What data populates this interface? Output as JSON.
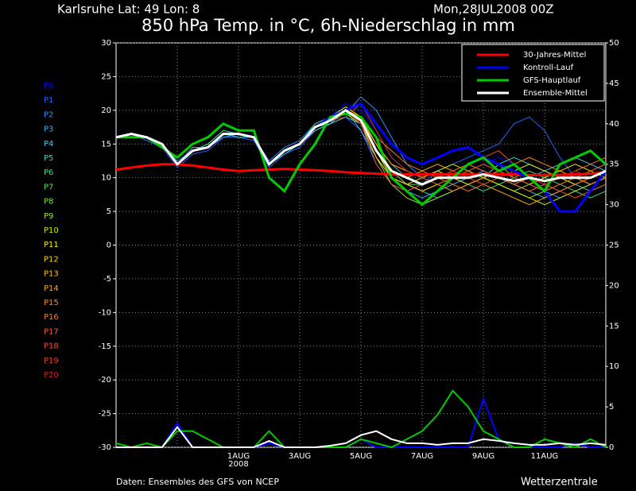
{
  "chart_data": {
    "type": "line",
    "location": "Karlsruhe   Lat: 49 Lon: 8",
    "run": "Mon,28JUL2008 00Z",
    "title": "850 hPa Temp. in °C, 6h-Niederschlag in mm",
    "source": "Daten: Ensembles des GFS von NCEP",
    "brand": "Wetterzentrale",
    "categories": [
      null,
      null,
      null,
      null,
      null,
      null,
      null,
      null,
      "1AUG",
      null,
      null,
      null,
      "3AUG",
      null,
      null,
      null,
      "5AUG",
      null,
      null,
      null,
      "7AUG",
      null,
      null,
      null,
      "9AUG",
      null,
      null,
      null,
      "11AUG",
      null,
      null,
      null,
      null
    ],
    "year_label": "2008",
    "ylim": [
      -30,
      30
    ],
    "yticks": [
      -30,
      -25,
      -20,
      -15,
      -10,
      -5,
      0,
      5,
      10,
      15,
      20,
      25,
      30
    ],
    "y2lim": [
      0,
      50
    ],
    "y2ticks": [
      0,
      5,
      10,
      15,
      20,
      25,
      30,
      35,
      40,
      45,
      50
    ],
    "grid": true,
    "legend": "upper right",
    "series": [
      {
        "name": "30-Jahres-Mittel",
        "color": "#ff0000",
        "values": [
          11.2,
          11.5,
          11.8,
          12,
          12,
          11.8,
          11.5,
          11.2,
          11,
          11.1,
          11.2,
          11.3,
          11.2,
          11.1,
          11,
          10.8,
          10.7,
          10.6,
          10.5,
          10.5,
          10.5,
          10.5,
          10.5,
          10.5,
          10.5,
          10.5,
          10.5,
          10.4,
          10.4,
          10.4,
          10.5,
          10.6,
          10.8
        ]
      },
      {
        "name": "Kontroll-Lauf",
        "color": "#0000ff",
        "values": [
          16,
          16.5,
          16,
          15,
          12,
          14,
          14.5,
          16.5,
          16.5,
          16,
          12,
          14,
          15,
          17.5,
          19,
          20,
          21,
          18,
          15,
          13,
          12,
          13,
          14,
          14.5,
          13,
          12,
          11,
          10,
          8,
          5,
          5,
          8,
          11
        ],
        "precip": [
          0,
          0,
          0,
          0,
          3,
          0,
          0,
          0,
          0,
          0,
          0.5,
          0,
          0,
          0,
          0,
          0,
          1,
          0,
          0,
          0,
          0,
          0,
          0,
          0,
          6,
          1,
          0,
          0,
          0,
          0,
          0.5,
          0,
          0
        ]
      },
      {
        "name": "GFS-Hauptlauf",
        "color": "#00cc00",
        "values": [
          16,
          16,
          16,
          14.5,
          13,
          15,
          16,
          18,
          17,
          17,
          10,
          8,
          12,
          15,
          19,
          19.5,
          19,
          16,
          10,
          8,
          6,
          8,
          10,
          12,
          13,
          11,
          12,
          10,
          8,
          12,
          13,
          14,
          12
        ],
        "precip": [
          0.5,
          0,
          0.5,
          0,
          2,
          2,
          1,
          0,
          0,
          0,
          2,
          0,
          0,
          0,
          0,
          0,
          1,
          0.5,
          0,
          1,
          2,
          4,
          7,
          5,
          2,
          1,
          0,
          0,
          1,
          0.5,
          0,
          1,
          0
        ]
      },
      {
        "name": "Ensemble-Mittel",
        "color": "#ffffff",
        "values": [
          16,
          16.5,
          16,
          15,
          12,
          14,
          14.5,
          16.5,
          16.5,
          16,
          12,
          14,
          15,
          17.5,
          18.5,
          20,
          18.5,
          14,
          11,
          10,
          9,
          10,
          10,
          10,
          10.5,
          10,
          9.5,
          10,
          9.5,
          10,
          10,
          10,
          11
        ],
        "precip": [
          0,
          0,
          0,
          0,
          2.5,
          0,
          0,
          0,
          0,
          0,
          0.8,
          0,
          0,
          0,
          0.2,
          0.5,
          1.5,
          2,
          1,
          0.5,
          0.5,
          0.3,
          0.5,
          0.5,
          1,
          0.8,
          0.5,
          0.3,
          0.3,
          0.5,
          0.3,
          0.5,
          0.3
        ]
      }
    ],
    "members": [
      {
        "name": "P0",
        "color": "#0000ff",
        "values": [
          16,
          16.5,
          16,
          15,
          12,
          14,
          14.5,
          16.5,
          16.5,
          16,
          12,
          14,
          15,
          17.5,
          19,
          21,
          20,
          17,
          13,
          11,
          10,
          9,
          10,
          11,
          12,
          13,
          12,
          10,
          8,
          9,
          10,
          11,
          12
        ]
      },
      {
        "name": "P1",
        "color": "#1e64ff",
        "values": [
          16,
          16.5,
          15.5,
          14.5,
          11.5,
          13.5,
          14,
          16,
          16,
          15.5,
          11.5,
          13.5,
          14.5,
          17,
          18,
          19,
          17,
          12,
          9,
          8,
          9,
          11,
          12,
          13,
          14,
          15,
          18,
          19,
          17,
          13,
          10,
          9,
          10
        ]
      },
      {
        "name": "P2",
        "color": "#2896ff",
        "values": [
          16,
          16.5,
          16,
          15,
          12.5,
          14,
          15,
          17,
          16.5,
          16,
          12.5,
          14.5,
          15.5,
          18,
          19,
          19.5,
          22,
          20,
          16,
          12,
          10,
          9,
          8,
          9,
          10,
          11,
          10,
          9,
          8,
          7,
          8,
          9,
          10
        ]
      },
      {
        "name": "P3",
        "color": "#3cb4ff",
        "values": [
          16,
          16,
          16,
          15,
          12,
          14.5,
          14.5,
          16,
          16.5,
          16,
          12,
          14,
          15,
          17,
          18,
          20,
          17,
          13,
          10,
          8,
          7,
          8,
          9,
          10,
          11,
          10,
          9,
          8,
          7,
          8,
          9,
          10,
          11
        ]
      },
      {
        "name": "P4",
        "color": "#46c8f0",
        "values": [
          16,
          16.5,
          16,
          15,
          12,
          14,
          14.5,
          16.5,
          16.5,
          16,
          12,
          14,
          15,
          17.5,
          18,
          20,
          19,
          15,
          12,
          10,
          9,
          10,
          11,
          12,
          11,
          10,
          9,
          10,
          11,
          12,
          13,
          12,
          11
        ]
      },
      {
        "name": "P5",
        "color": "#3cd2c8",
        "values": [
          16,
          16.5,
          16,
          15,
          12,
          14,
          14.5,
          16.5,
          16,
          16,
          12,
          13.5,
          15,
          17,
          18,
          19,
          18,
          14,
          10,
          9,
          8,
          7,
          8,
          9,
          10,
          12,
          13,
          12,
          11,
          10,
          9,
          8,
          9
        ]
      },
      {
        "name": "P6",
        "color": "#3cdc78",
        "values": [
          16,
          16.5,
          16,
          15,
          12,
          14,
          15,
          17,
          16.5,
          16,
          12,
          14,
          15,
          18,
          19,
          20,
          18,
          13,
          10,
          9,
          9,
          10,
          10,
          9,
          8,
          9,
          10,
          11,
          10,
          9,
          8,
          7,
          8
        ]
      },
      {
        "name": "P7",
        "color": "#50e650",
        "values": [
          16,
          16.5,
          16,
          15,
          12,
          14,
          14.5,
          16.5,
          16.5,
          16,
          12,
          14,
          15,
          17.5,
          18.5,
          20,
          18,
          14,
          11,
          10,
          9,
          10,
          11,
          12,
          13,
          12,
          10,
          9,
          8,
          9,
          10,
          11,
          12
        ]
      },
      {
        "name": "P8",
        "color": "#78e63c",
        "values": [
          16,
          16.5,
          16,
          15,
          12,
          14,
          14.5,
          16.5,
          16.5,
          16,
          12,
          14,
          15,
          17.5,
          18.5,
          20,
          19,
          15,
          11,
          9,
          8,
          9,
          10,
          11,
          10,
          9,
          8,
          9,
          10,
          11,
          10,
          9,
          10
        ]
      },
      {
        "name": "P9",
        "color": "#a0e632",
        "values": [
          16,
          16.5,
          16,
          15,
          12,
          14,
          14.5,
          16.5,
          16.5,
          16,
          12,
          14,
          15,
          17.5,
          18.5,
          20,
          18,
          13,
          9,
          7,
          6,
          7,
          8,
          9,
          10,
          9,
          8,
          7,
          8,
          9,
          10,
          11,
          12
        ]
      },
      {
        "name": "P10",
        "color": "#c8f000",
        "values": [
          16,
          16.5,
          16,
          15,
          12,
          14,
          14.5,
          16.5,
          16.5,
          16,
          12,
          14,
          15,
          17.5,
          18.5,
          20,
          18.5,
          15,
          12,
          11,
          10,
          11,
          12,
          11,
          10,
          9,
          8,
          7,
          6,
          7,
          8,
          9,
          10
        ]
      },
      {
        "name": "P11",
        "color": "#f0f000",
        "values": [
          16,
          16.5,
          16,
          15,
          12,
          14,
          14.5,
          16.5,
          16.5,
          16,
          12,
          14,
          15,
          17.5,
          19,
          20.5,
          19,
          14,
          11,
          10,
          9,
          10,
          11,
          10,
          9,
          10,
          11,
          12,
          11,
          10,
          9,
          10,
          11
        ]
      },
      {
        "name": "P12",
        "color": "#ffdc00",
        "values": [
          16,
          16.5,
          16,
          15,
          12,
          14,
          14.5,
          16.5,
          16.5,
          16,
          12,
          14,
          15,
          17.5,
          18.5,
          19.5,
          18,
          14,
          10,
          9,
          10,
          11,
          10,
          9,
          10,
          11,
          10,
          9,
          10,
          11,
          12,
          11,
          10
        ]
      },
      {
        "name": "P13",
        "color": "#ffc800",
        "values": [
          16,
          16.5,
          16,
          15,
          12,
          14,
          14.5,
          16.5,
          16.5,
          16,
          12,
          14,
          15,
          17.5,
          18.5,
          20,
          18,
          13,
          10,
          9,
          8,
          9,
          10,
          11,
          12,
          11,
          10,
          9,
          8,
          9,
          10,
          11,
          12
        ]
      },
      {
        "name": "P14",
        "color": "#ffaa00",
        "values": [
          16,
          16.5,
          16,
          15,
          12,
          14,
          14.5,
          16.5,
          16.5,
          16,
          12,
          14,
          15,
          17.5,
          18.5,
          20,
          19,
          14,
          11,
          10,
          11,
          12,
          11,
          10,
          9,
          8,
          7,
          6,
          7,
          8,
          9,
          10,
          11
        ]
      },
      {
        "name": "P15",
        "color": "#ff8c00",
        "values": [
          16,
          16.5,
          16,
          15,
          12,
          14,
          14.5,
          16.5,
          16.5,
          16,
          12,
          14,
          15,
          17.5,
          18.5,
          20,
          18.5,
          15,
          12,
          11,
          10,
          9,
          8,
          9,
          10,
          11,
          12,
          13,
          12,
          11,
          10,
          9,
          10
        ]
      },
      {
        "name": "P16",
        "color": "#ff7814",
        "values": [
          16,
          16.5,
          16,
          15,
          12,
          14,
          14.5,
          16.5,
          16.5,
          16,
          12,
          14,
          15,
          17.5,
          19,
          20,
          19,
          16,
          14,
          12,
          11,
          10,
          9,
          8,
          9,
          10,
          9,
          8,
          9,
          10,
          11,
          12,
          13
        ]
      },
      {
        "name": "P17",
        "color": "#f06428",
        "values": [
          16,
          16.5,
          16,
          15,
          12,
          14,
          14.5,
          16.5,
          16.5,
          16,
          12,
          14,
          15,
          17.5,
          18.5,
          20,
          18,
          14,
          11,
          10,
          9,
          10,
          11,
          12,
          11,
          10,
          9,
          10,
          9,
          8,
          9,
          10,
          11
        ]
      },
      {
        "name": "P18",
        "color": "#e65032",
        "values": [
          16,
          16.5,
          16,
          15,
          12,
          14,
          14.5,
          16.5,
          16.5,
          16,
          12,
          14,
          15,
          17.5,
          18.5,
          20,
          18,
          12,
          9,
          8,
          9,
          10,
          11,
          12,
          13,
          14,
          12,
          10,
          9,
          8,
          7,
          8,
          9
        ]
      },
      {
        "name": "P19",
        "color": "#dc3c28",
        "values": [
          16,
          16.5,
          16,
          15,
          12,
          14,
          14.5,
          16.5,
          16.5,
          16,
          12,
          14,
          15,
          17.5,
          18.5,
          19,
          21,
          17,
          13,
          11,
          10,
          9,
          10,
          11,
          12,
          11,
          10,
          9,
          8,
          9,
          10,
          11,
          12
        ]
      },
      {
        "name": "P20",
        "color": "#c81e1e",
        "values": [
          16,
          16.5,
          16,
          15,
          12,
          14,
          14.5,
          16.5,
          16.5,
          16,
          12,
          14,
          15,
          17.5,
          18.5,
          20,
          18,
          14,
          11,
          10,
          9,
          10,
          11,
          10,
          9,
          10,
          11,
          10,
          9,
          10,
          11,
          10,
          11
        ]
      }
    ]
  }
}
